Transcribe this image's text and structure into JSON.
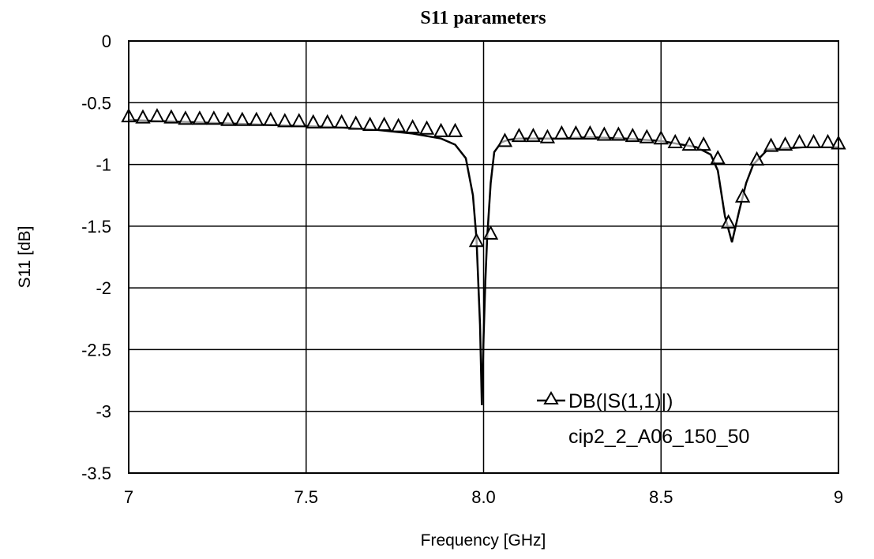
{
  "chart_data": {
    "type": "line",
    "title": "S11 parameters",
    "xlabel": "Frequency [GHz]",
    "ylabel": "S11 [dB]",
    "xlim": [
      7,
      9
    ],
    "ylim": [
      -3.5,
      0
    ],
    "grid": true,
    "x_ticks": [
      7,
      7.5,
      8.0,
      8.5,
      9
    ],
    "x_tick_labels": [
      "7",
      "7.5",
      "8.0",
      "8.5",
      "9"
    ],
    "y_ticks": [
      0,
      -0.5,
      -1,
      -1.5,
      -2,
      -2.5,
      -3,
      -3.5
    ],
    "y_tick_labels": [
      "0",
      "-0.5",
      "-1",
      "-1.5",
      "-2",
      "-2.5",
      "-3",
      "-3.5"
    ],
    "legend": {
      "placement": "bottom-right",
      "entries": [
        "DB(|S(1,1)|)",
        "cip2_2_A06_150_50"
      ]
    },
    "series": [
      {
        "name": "DB(|S(1,1)|) cip2_2_A06_150_50",
        "marker": "triangle",
        "x": [
          7.0,
          7.1,
          7.2,
          7.3,
          7.4,
          7.5,
          7.6,
          7.7,
          7.8,
          7.88,
          7.92,
          7.95,
          7.97,
          7.98,
          7.99,
          7.995,
          8.0,
          8.005,
          8.01,
          8.02,
          8.03,
          8.05,
          8.07,
          8.1,
          8.2,
          8.3,
          8.4,
          8.5,
          8.6,
          8.64,
          8.66,
          8.68,
          8.7,
          8.72,
          8.74,
          8.76,
          8.8,
          8.9,
          9.0
        ],
        "y": [
          -0.64,
          -0.65,
          -0.66,
          -0.67,
          -0.68,
          -0.69,
          -0.7,
          -0.72,
          -0.75,
          -0.79,
          -0.84,
          -0.95,
          -1.25,
          -1.6,
          -2.3,
          -2.95,
          -2.4,
          -1.95,
          -1.6,
          -1.15,
          -0.9,
          -0.82,
          -0.8,
          -0.79,
          -0.79,
          -0.78,
          -0.79,
          -0.81,
          -0.86,
          -0.92,
          -1.05,
          -1.42,
          -1.63,
          -1.38,
          -1.15,
          -1.0,
          -0.88,
          -0.86,
          -0.86
        ],
        "marker_x": [
          7.0,
          7.04,
          7.08,
          7.12,
          7.16,
          7.2,
          7.24,
          7.28,
          7.32,
          7.36,
          7.4,
          7.44,
          7.48,
          7.52,
          7.56,
          7.6,
          7.64,
          7.68,
          7.72,
          7.76,
          7.8,
          7.84,
          7.88,
          7.92,
          7.98,
          8.02,
          8.06,
          8.1,
          8.14,
          8.18,
          8.22,
          8.26,
          8.3,
          8.34,
          8.38,
          8.42,
          8.46,
          8.5,
          8.54,
          8.58,
          8.62,
          8.66,
          8.69,
          8.73,
          8.77,
          8.81,
          8.85,
          8.89,
          8.93,
          8.97,
          9.0
        ],
        "marker_y": [
          -0.62,
          -0.63,
          -0.62,
          -0.63,
          -0.64,
          -0.64,
          -0.64,
          -0.65,
          -0.65,
          -0.65,
          -0.65,
          -0.66,
          -0.66,
          -0.67,
          -0.67,
          -0.67,
          -0.68,
          -0.69,
          -0.69,
          -0.7,
          -0.71,
          -0.72,
          -0.74,
          -0.74,
          -1.63,
          -1.57,
          -0.82,
          -0.78,
          -0.78,
          -0.79,
          -0.76,
          -0.76,
          -0.76,
          -0.77,
          -0.77,
          -0.78,
          -0.79,
          -0.8,
          -0.83,
          -0.85,
          -0.85,
          -0.96,
          -1.48,
          -1.27,
          -0.97,
          -0.86,
          -0.85,
          -0.83,
          -0.83,
          -0.83,
          -0.84
        ]
      }
    ]
  }
}
